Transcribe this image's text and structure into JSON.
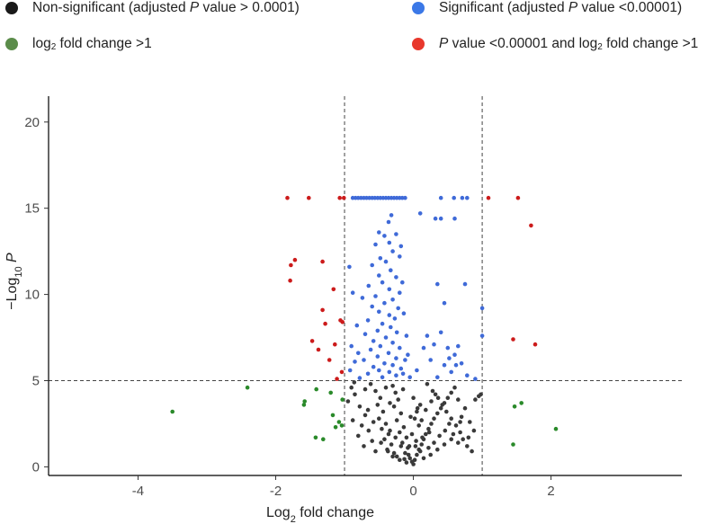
{
  "legend": [
    {
      "color": "#1a1a1a",
      "parts": [
        {
          "t": "Non-significant (adjusted "
        },
        {
          "t": "P",
          "i": true
        },
        {
          "t": " value > 0.0001)"
        }
      ]
    },
    {
      "color": "#5b8c4a",
      "parts": [
        {
          "t": "log"
        },
        {
          "t": "2",
          "sub": true
        },
        {
          "t": " fold change >1"
        }
      ]
    },
    {
      "color": "#3b78e7",
      "parts": [
        {
          "t": "Significant (adjusted "
        },
        {
          "t": "P",
          "i": true
        },
        {
          "t": " value <0.00001)"
        }
      ]
    },
    {
      "color": "#e8382c",
      "parts": [
        {
          "t": "P",
          "i": true
        },
        {
          "t": " value <0.00001 and log"
        },
        {
          "t": "2",
          "sub": true
        },
        {
          "t": " fold change >1"
        }
      ]
    }
  ],
  "chart_data": {
    "type": "scatter",
    "title": "",
    "xlabel_parts": [
      {
        "t": "Log"
      },
      {
        "t": "2",
        "sub": true
      },
      {
        "t": " fold change"
      }
    ],
    "ylabel_parts": [
      {
        "t": "−Log"
      },
      {
        "t": "10",
        "sub": true
      },
      {
        "t": " "
      },
      {
        "t": "P",
        "i": true
      }
    ],
    "xlim": [
      -5.3,
      3.9
    ],
    "ylim": [
      -0.5,
      21.5
    ],
    "xticks": [
      -4,
      -2,
      0,
      2
    ],
    "yticks": [
      0,
      5,
      10,
      15,
      20
    ],
    "thresholds": {
      "x": [
        -1,
        1
      ],
      "y": 5
    },
    "grid": false,
    "series": [
      {
        "name": "P value <0.00001 and log2 fold change >1",
        "color": "#cc1b1b",
        "points": [
          [
            -1.83,
            15.6
          ],
          [
            -1.52,
            15.6
          ],
          [
            -1.07,
            15.6
          ],
          [
            -1.01,
            15.6
          ],
          [
            1.09,
            15.6
          ],
          [
            1.52,
            15.6
          ],
          [
            1.71,
            14.0
          ],
          [
            -1.72,
            12.0
          ],
          [
            -1.78,
            11.7
          ],
          [
            -1.32,
            11.9
          ],
          [
            -1.79,
            10.8
          ],
          [
            -1.16,
            10.3
          ],
          [
            -1.32,
            9.1
          ],
          [
            -1.28,
            8.3
          ],
          [
            -1.03,
            8.4
          ],
          [
            -1.06,
            8.5
          ],
          [
            -1.47,
            7.3
          ],
          [
            -1.38,
            6.8
          ],
          [
            -1.14,
            7.1
          ],
          [
            -1.22,
            6.2
          ],
          [
            -1.04,
            5.5
          ],
          [
            -1.11,
            5.1
          ],
          [
            1.45,
            7.4
          ],
          [
            1.77,
            7.1
          ]
        ]
      },
      {
        "name": "log2 fold change >1",
        "color": "#2a8a2a",
        "points": [
          [
            -3.5,
            3.2
          ],
          [
            -2.41,
            4.6
          ],
          [
            -1.58,
            3.8
          ],
          [
            -1.59,
            3.6
          ],
          [
            -1.41,
            4.5
          ],
          [
            -1.2,
            4.3
          ],
          [
            -1.03,
            3.9
          ],
          [
            -1.17,
            3.0
          ],
          [
            -1.08,
            2.6
          ],
          [
            -1.04,
            2.4
          ],
          [
            -1.13,
            2.3
          ],
          [
            -1.42,
            1.7
          ],
          [
            -1.31,
            1.6
          ],
          [
            1.45,
            1.3
          ],
          [
            1.47,
            3.5
          ],
          [
            1.57,
            3.7
          ],
          [
            2.07,
            2.2
          ]
        ]
      },
      {
        "name": "Significant (adjusted P value <0.00001)",
        "color": "#3f6ad8",
        "points": [
          [
            -0.88,
            15.6
          ],
          [
            -0.84,
            15.6
          ],
          [
            -0.8,
            15.6
          ],
          [
            -0.76,
            15.6
          ],
          [
            -0.72,
            15.6
          ],
          [
            -0.68,
            15.6
          ],
          [
            -0.64,
            15.6
          ],
          [
            -0.6,
            15.6
          ],
          [
            -0.56,
            15.6
          ],
          [
            -0.52,
            15.6
          ],
          [
            -0.48,
            15.6
          ],
          [
            -0.44,
            15.6
          ],
          [
            -0.4,
            15.6
          ],
          [
            -0.36,
            15.6
          ],
          [
            -0.32,
            15.6
          ],
          [
            -0.28,
            15.6
          ],
          [
            -0.24,
            15.6
          ],
          [
            -0.2,
            15.6
          ],
          [
            -0.16,
            15.6
          ],
          [
            -0.12,
            15.6
          ],
          [
            0.4,
            15.6
          ],
          [
            0.59,
            15.6
          ],
          [
            0.71,
            15.6
          ],
          [
            0.78,
            15.6
          ],
          [
            0.1,
            14.7
          ],
          [
            0.32,
            14.4
          ],
          [
            0.4,
            14.4
          ],
          [
            0.6,
            14.4
          ],
          [
            -0.32,
            14.6
          ],
          [
            -0.36,
            14.2
          ],
          [
            -0.5,
            13.6
          ],
          [
            -0.42,
            13.4
          ],
          [
            -0.35,
            13.0
          ],
          [
            -0.25,
            13.5
          ],
          [
            -0.55,
            12.9
          ],
          [
            -0.3,
            12.5
          ],
          [
            -0.48,
            12.1
          ],
          [
            -0.2,
            12.2
          ],
          [
            -0.4,
            11.9
          ],
          [
            -0.6,
            11.7
          ],
          [
            -0.33,
            11.4
          ],
          [
            -0.5,
            11.1
          ],
          [
            -0.25,
            11.0
          ],
          [
            -0.45,
            10.7
          ],
          [
            -0.65,
            10.5
          ],
          [
            -0.35,
            10.3
          ],
          [
            -0.2,
            10.1
          ],
          [
            -0.55,
            9.9
          ],
          [
            -0.3,
            9.7
          ],
          [
            -0.42,
            9.5
          ],
          [
            -0.6,
            9.3
          ],
          [
            -0.22,
            9.2
          ],
          [
            -0.5,
            9.0
          ],
          [
            -0.35,
            8.8
          ],
          [
            -0.27,
            8.6
          ],
          [
            -0.66,
            8.5
          ],
          [
            -0.45,
            8.3
          ],
          [
            -0.33,
            8.1
          ],
          [
            -0.52,
            7.9
          ],
          [
            -0.24,
            7.8
          ],
          [
            -0.7,
            7.7
          ],
          [
            -0.4,
            7.5
          ],
          [
            -0.58,
            7.3
          ],
          [
            -0.3,
            7.2
          ],
          [
            -0.48,
            7.0
          ],
          [
            -0.2,
            6.9
          ],
          [
            -0.62,
            6.8
          ],
          [
            -0.36,
            6.6
          ],
          [
            -0.52,
            6.4
          ],
          [
            -0.25,
            6.3
          ],
          [
            -0.72,
            6.2
          ],
          [
            -0.42,
            6.0
          ],
          [
            -0.3,
            5.9
          ],
          [
            -0.58,
            5.8
          ],
          [
            -0.18,
            5.7
          ],
          [
            -0.5,
            5.6
          ],
          [
            -0.35,
            5.5
          ],
          [
            -0.66,
            5.4
          ],
          [
            -0.25,
            5.3
          ],
          [
            -0.45,
            5.2
          ],
          [
            -0.78,
            5.15
          ],
          [
            -0.85,
            6.1
          ],
          [
            -0.9,
            7.0
          ],
          [
            -0.82,
            8.2
          ],
          [
            -0.88,
            10.1
          ],
          [
            -0.93,
            11.6
          ],
          [
            -0.74,
            9.8
          ],
          [
            -0.8,
            6.6
          ],
          [
            -0.92,
            5.6
          ],
          [
            -0.15,
            5.4
          ],
          [
            -0.12,
            6.2
          ],
          [
            -0.1,
            7.6
          ],
          [
            -0.14,
            8.9
          ],
          [
            -0.16,
            10.7
          ],
          [
            -0.18,
            12.8
          ],
          [
            0.35,
            10.6
          ],
          [
            0.45,
            9.5
          ],
          [
            0.2,
            7.6
          ],
          [
            0.3,
            7.1
          ],
          [
            0.5,
            6.9
          ],
          [
            0.4,
            7.8
          ],
          [
            0.6,
            6.5
          ],
          [
            0.25,
            6.2
          ],
          [
            0.45,
            5.9
          ],
          [
            0.7,
            6.0
          ],
          [
            0.55,
            5.5
          ],
          [
            0.78,
            5.3
          ],
          [
            0.35,
            5.2
          ],
          [
            0.65,
            7.0
          ],
          [
            0.75,
            10.6
          ],
          [
            0.9,
            5.1
          ],
          [
            0.52,
            6.3
          ],
          [
            0.15,
            6.9
          ],
          [
            0.62,
            5.9
          ],
          [
            1.0,
            9.2
          ],
          [
            1.0,
            7.6
          ],
          [
            -0.05,
            5.2
          ],
          [
            -0.08,
            6.5
          ],
          [
            0.05,
            5.6
          ]
        ]
      },
      {
        "name": "Non-significant (adjusted P value > 0.0001)",
        "color": "#3a3a3a",
        "points": [
          [
            -0.9,
            4.6
          ],
          [
            -0.85,
            4.2
          ],
          [
            -0.95,
            3.8
          ],
          [
            -0.78,
            3.5
          ],
          [
            -0.7,
            3.0
          ],
          [
            -0.88,
            2.7
          ],
          [
            -0.75,
            2.4
          ],
          [
            -0.65,
            2.1
          ],
          [
            -0.8,
            1.8
          ],
          [
            -0.6,
            1.5
          ],
          [
            -0.72,
            1.2
          ],
          [
            -0.55,
            0.9
          ],
          [
            -0.62,
            4.8
          ],
          [
            -0.55,
            4.4
          ],
          [
            -0.48,
            4.0
          ],
          [
            -0.52,
            3.6
          ],
          [
            -0.44,
            3.2
          ],
          [
            -0.5,
            2.8
          ],
          [
            -0.4,
            2.5
          ],
          [
            -0.46,
            2.2
          ],
          [
            -0.36,
            1.9
          ],
          [
            -0.42,
            1.6
          ],
          [
            -0.32,
            1.3
          ],
          [
            -0.38,
            1.0
          ],
          [
            -0.28,
            0.8
          ],
          [
            -0.3,
            4.7
          ],
          [
            -0.26,
            4.3
          ],
          [
            -0.22,
            3.9
          ],
          [
            -0.28,
            3.5
          ],
          [
            -0.18,
            3.1
          ],
          [
            -0.24,
            2.7
          ],
          [
            -0.14,
            2.3
          ],
          [
            -0.2,
            2.0
          ],
          [
            -0.1,
            1.7
          ],
          [
            -0.16,
            1.4
          ],
          [
            -0.08,
            1.1
          ],
          [
            -0.12,
            0.8
          ],
          [
            -0.05,
            0.5
          ],
          [
            -0.02,
            0.3
          ],
          [
            0.0,
            0.15
          ],
          [
            0.02,
            0.4
          ],
          [
            0.05,
            0.7
          ],
          [
            0.08,
            1.0
          ],
          [
            0.12,
            1.3
          ],
          [
            0.15,
            1.6
          ],
          [
            0.18,
            1.9
          ],
          [
            0.22,
            2.2
          ],
          [
            0.26,
            2.5
          ],
          [
            0.3,
            2.8
          ],
          [
            0.35,
            3.1
          ],
          [
            0.4,
            3.4
          ],
          [
            0.45,
            3.7
          ],
          [
            0.5,
            4.0
          ],
          [
            0.55,
            4.3
          ],
          [
            0.6,
            4.6
          ],
          [
            0.2,
            4.8
          ],
          [
            0.28,
            4.4
          ],
          [
            0.36,
            4.0
          ],
          [
            0.42,
            3.6
          ],
          [
            0.48,
            3.2
          ],
          [
            0.55,
            2.8
          ],
          [
            0.62,
            2.4
          ],
          [
            0.68,
            2.0
          ],
          [
            0.72,
            1.6
          ],
          [
            0.78,
            1.2
          ],
          [
            0.85,
            0.9
          ],
          [
            0.05,
            3.2
          ],
          [
            0.1,
            3.6
          ],
          [
            0.02,
            2.8
          ],
          [
            0.08,
            2.4
          ],
          [
            -0.02,
            1.9
          ],
          [
            0.04,
            1.5
          ],
          [
            -0.06,
            1.2
          ],
          [
            0.1,
            0.9
          ],
          [
            0.65,
            3.9
          ],
          [
            0.75,
            3.4
          ],
          [
            0.82,
            2.6
          ],
          [
            0.88,
            2.1
          ],
          [
            0.9,
            3.9
          ],
          [
            0.95,
            4.1
          ],
          [
            0.98,
            4.2
          ],
          [
            0.7,
            2.9
          ],
          [
            0.8,
            1.7
          ],
          [
            -0.3,
            0.6
          ],
          [
            -0.2,
            0.4
          ],
          [
            -0.1,
            0.25
          ],
          [
            0.15,
            0.5
          ],
          [
            0.25,
            0.7
          ],
          [
            0.35,
            1.0
          ],
          [
            0.45,
            1.3
          ],
          [
            0.55,
            1.6
          ],
          [
            0.65,
            1.4
          ],
          [
            -0.66,
            3.3
          ],
          [
            -0.58,
            2.6
          ],
          [
            -0.34,
            2.1
          ],
          [
            -0.26,
            1.7
          ],
          [
            -0.18,
            1.2
          ],
          [
            0.12,
            2.7
          ],
          [
            0.18,
            3.3
          ],
          [
            0.26,
            3.8
          ],
          [
            0.32,
            4.2
          ],
          [
            -0.4,
            4.6
          ],
          [
            -0.34,
            3.7
          ],
          [
            -0.15,
            4.5
          ],
          [
            0.0,
            4.0
          ],
          [
            0.06,
            3.4
          ],
          [
            -0.04,
            2.9
          ],
          [
            0.22,
            1.1
          ],
          [
            0.3,
            1.4
          ],
          [
            0.38,
            1.8
          ],
          [
            0.46,
            2.1
          ],
          [
            0.52,
            2.5
          ],
          [
            0.58,
            1.9
          ],
          [
            0.68,
            2.6
          ],
          [
            -0.86,
            4.9
          ],
          [
            -0.7,
            4.5
          ],
          [
            -0.47,
            1.4
          ],
          [
            -0.37,
            0.9
          ],
          [
            -0.24,
            0.6
          ],
          [
            -0.13,
            0.45
          ],
          [
            -0.07,
            0.7
          ],
          [
            0.03,
            1.2
          ],
          [
            0.13,
            1.7
          ],
          [
            0.23,
            2.0
          ]
        ]
      }
    ]
  }
}
